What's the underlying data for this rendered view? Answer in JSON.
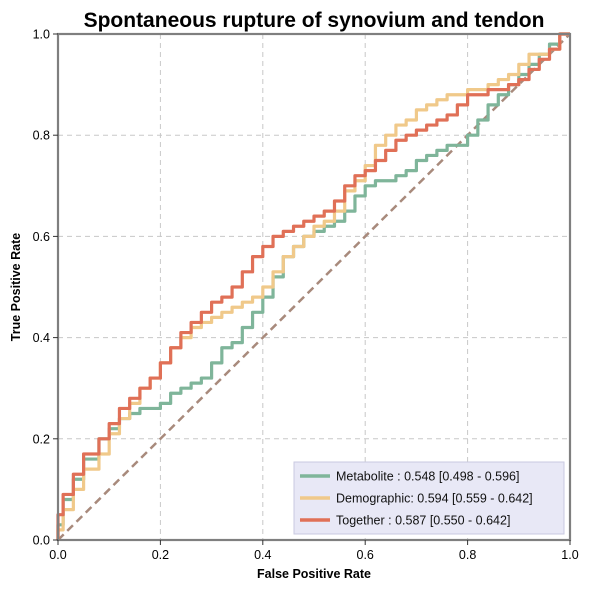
{
  "chart_data": {
    "type": "line",
    "title": "Spontaneous rupture of synovium and tendon",
    "xlabel": "False Positive Rate",
    "ylabel": "True Positive Rate",
    "xlim": [
      0,
      1
    ],
    "ylim": [
      0,
      1
    ],
    "x_ticks": [
      "0.0",
      "0.2",
      "0.4",
      "0.6",
      "0.8",
      "1.0"
    ],
    "y_ticks": [
      "0.0",
      "0.2",
      "0.4",
      "0.6",
      "0.8",
      "1.0"
    ],
    "grid": true,
    "legend_position": "lower-right",
    "colors": {
      "frame": "#7f7f7f",
      "grid": "#c8c8c8",
      "diagonal": "#a88a7c",
      "legend_bg": "#e8e8f6",
      "legend_border": "#c9c9e0"
    },
    "diagonal": {
      "x": [
        0,
        1
      ],
      "y": [
        0,
        1
      ]
    },
    "series": [
      {
        "name": "Metabolite",
        "legend_label": "Metabolite     : 0.548 [0.498 - 0.596]",
        "color": "#7fb59a",
        "x": [
          0,
          0.01,
          0.03,
          0.05,
          0.08,
          0.1,
          0.12,
          0.14,
          0.16,
          0.18,
          0.2,
          0.22,
          0.24,
          0.26,
          0.28,
          0.3,
          0.32,
          0.34,
          0.36,
          0.38,
          0.4,
          0.42,
          0.44,
          0.46,
          0.48,
          0.5,
          0.52,
          0.54,
          0.56,
          0.58,
          0.6,
          0.62,
          0.64,
          0.66,
          0.68,
          0.7,
          0.72,
          0.74,
          0.76,
          0.78,
          0.8,
          0.82,
          0.84,
          0.86,
          0.88,
          0.9,
          0.92,
          0.94,
          0.96,
          0.98,
          1.0
        ],
        "y": [
          0,
          0.03,
          0.08,
          0.12,
          0.16,
          0.2,
          0.22,
          0.24,
          0.25,
          0.26,
          0.26,
          0.27,
          0.29,
          0.3,
          0.31,
          0.32,
          0.35,
          0.38,
          0.39,
          0.42,
          0.45,
          0.48,
          0.52,
          0.56,
          0.58,
          0.6,
          0.61,
          0.62,
          0.63,
          0.65,
          0.68,
          0.7,
          0.71,
          0.71,
          0.72,
          0.73,
          0.75,
          0.76,
          0.77,
          0.78,
          0.78,
          0.8,
          0.83,
          0.86,
          0.88,
          0.9,
          0.92,
          0.94,
          0.96,
          0.98,
          1.0
        ]
      },
      {
        "name": "Demographic",
        "legend_label": "Demographic: 0.594 [0.559 - 0.642]",
        "color": "#f0c98a",
        "x": [
          0,
          0.01,
          0.03,
          0.05,
          0.08,
          0.1,
          0.12,
          0.14,
          0.16,
          0.18,
          0.2,
          0.22,
          0.24,
          0.26,
          0.28,
          0.3,
          0.32,
          0.34,
          0.36,
          0.38,
          0.4,
          0.42,
          0.44,
          0.46,
          0.48,
          0.5,
          0.52,
          0.54,
          0.56,
          0.58,
          0.6,
          0.62,
          0.64,
          0.66,
          0.68,
          0.7,
          0.72,
          0.74,
          0.76,
          0.78,
          0.8,
          0.82,
          0.84,
          0.86,
          0.88,
          0.9,
          0.92,
          0.94,
          0.96,
          0.98,
          1.0
        ],
        "y": [
          0,
          0.02,
          0.06,
          0.1,
          0.14,
          0.17,
          0.21,
          0.24,
          0.27,
          0.3,
          0.32,
          0.35,
          0.38,
          0.4,
          0.42,
          0.43,
          0.44,
          0.45,
          0.46,
          0.47,
          0.48,
          0.5,
          0.53,
          0.56,
          0.58,
          0.6,
          0.62,
          0.63,
          0.65,
          0.69,
          0.71,
          0.74,
          0.78,
          0.8,
          0.82,
          0.83,
          0.85,
          0.86,
          0.87,
          0.88,
          0.88,
          0.89,
          0.89,
          0.9,
          0.91,
          0.92,
          0.94,
          0.96,
          0.96,
          0.97,
          1.0
        ]
      },
      {
        "name": "Together",
        "legend_label": "Together       : 0.587 [0.550 - 0.642]",
        "color": "#e07057",
        "x": [
          0,
          0.01,
          0.03,
          0.05,
          0.08,
          0.1,
          0.12,
          0.14,
          0.16,
          0.18,
          0.2,
          0.22,
          0.24,
          0.26,
          0.28,
          0.3,
          0.32,
          0.34,
          0.36,
          0.38,
          0.4,
          0.42,
          0.44,
          0.46,
          0.48,
          0.5,
          0.52,
          0.54,
          0.56,
          0.58,
          0.6,
          0.62,
          0.64,
          0.66,
          0.68,
          0.7,
          0.72,
          0.74,
          0.76,
          0.78,
          0.8,
          0.82,
          0.84,
          0.86,
          0.88,
          0.9,
          0.92,
          0.94,
          0.96,
          0.98,
          1.0
        ],
        "y": [
          0,
          0.05,
          0.09,
          0.13,
          0.17,
          0.2,
          0.23,
          0.26,
          0.28,
          0.3,
          0.32,
          0.35,
          0.38,
          0.41,
          0.43,
          0.45,
          0.47,
          0.48,
          0.5,
          0.53,
          0.56,
          0.58,
          0.6,
          0.61,
          0.62,
          0.63,
          0.64,
          0.65,
          0.67,
          0.7,
          0.72,
          0.73,
          0.75,
          0.77,
          0.79,
          0.8,
          0.81,
          0.82,
          0.83,
          0.84,
          0.86,
          0.88,
          0.88,
          0.89,
          0.89,
          0.9,
          0.91,
          0.93,
          0.95,
          0.97,
          1.0
        ]
      }
    ]
  }
}
